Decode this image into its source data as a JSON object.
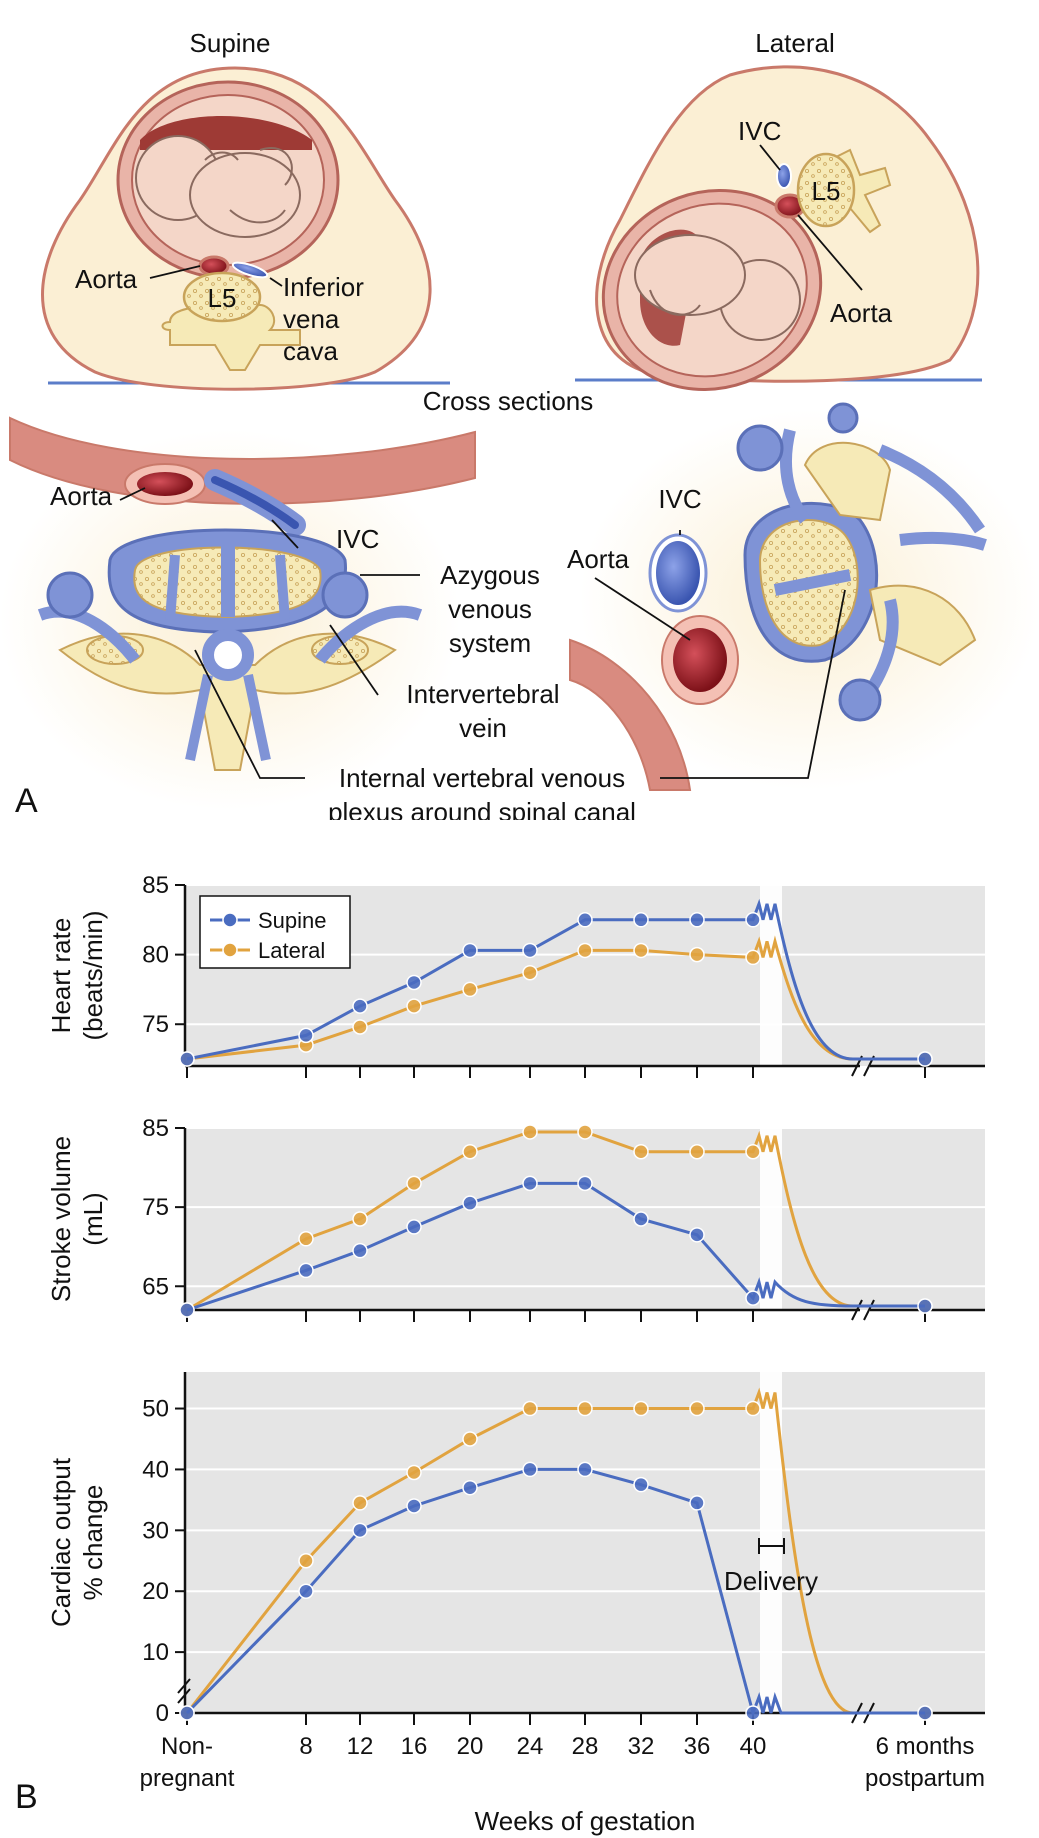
{
  "panel_a": {
    "panel_letter": "A",
    "supine_title": "Supine",
    "lateral_title": "Lateral",
    "cross_sections": "Cross sections",
    "labels": {
      "aorta": "Aorta",
      "inferior": "Inferior",
      "vena": "vena",
      "cava": "cava",
      "ivc": "IVC",
      "l5": "L5",
      "azygous_1": "Azygous",
      "azygous_2": "venous",
      "azygous_3": "system",
      "intervertebral_1": "Intervertebral",
      "intervertebral_2": "vein",
      "plexus_1": "Internal vertebral venous",
      "plexus_2": "plexus around spinal canal"
    },
    "colors": {
      "skin": "#fbefd4",
      "skin_outline": "#c9796a",
      "uterus": "#d88a7e",
      "aorta": "#9e1c22",
      "vein": "#7f93d6",
      "bone": "#f6eab7"
    }
  },
  "panel_b": {
    "panel_letter": "B",
    "legend": [
      "Supine",
      "Lateral"
    ],
    "colors": {
      "Supine": "#4a6cc0",
      "Lateral": "#e1a33f",
      "plot_bg": "#e5e5e5"
    },
    "x_title": "Weeks of gestation",
    "x_ticks": [
      "Non-\npregnant",
      "8",
      "12",
      "16",
      "20",
      "24",
      "28",
      "32",
      "36",
      "40",
      "6 months\npostpartum"
    ],
    "delivery_label": "Delivery"
  },
  "chart_data": [
    {
      "type": "line",
      "ylabel": "Heart rate\n(beats/min)",
      "yticks": [
        75,
        80,
        85
      ],
      "ylim": [
        72,
        85
      ],
      "x": [
        "Non-pregnant",
        8,
        12,
        16,
        20,
        24,
        28,
        32,
        36,
        40,
        "6 months postpartum"
      ],
      "series": [
        {
          "name": "Supine",
          "values": [
            72.5,
            74.2,
            76.3,
            78.0,
            80.3,
            80.3,
            82.5,
            82.5,
            82.5,
            82.5,
            72.5
          ]
        },
        {
          "name": "Lateral",
          "values": [
            72.5,
            73.5,
            74.8,
            76.3,
            77.5,
            78.7,
            80.3,
            80.3,
            80.0,
            79.8,
            72.5
          ]
        }
      ],
      "grid": true
    },
    {
      "type": "line",
      "ylabel": "Stroke volume\n(mL)",
      "yticks": [
        65,
        75,
        85
      ],
      "ylim": [
        62,
        85
      ],
      "x": [
        "Non-pregnant",
        8,
        12,
        16,
        20,
        24,
        28,
        32,
        36,
        40,
        "6 months postpartum"
      ],
      "series": [
        {
          "name": "Supine",
          "values": [
            62,
            67,
            69.5,
            72.5,
            75.5,
            78,
            78,
            73.5,
            71.5,
            63.5,
            62.5
          ]
        },
        {
          "name": "Lateral",
          "values": [
            62,
            71,
            73.5,
            78,
            82,
            84.5,
            84.5,
            82,
            82,
            82,
            62.5
          ]
        }
      ],
      "grid": true
    },
    {
      "type": "line",
      "ylabel": "Cardiac output\n% change",
      "yticks": [
        0,
        10,
        20,
        30,
        40,
        50
      ],
      "ylim": [
        0,
        56
      ],
      "x": [
        "Non-pregnant",
        8,
        12,
        16,
        20,
        24,
        28,
        32,
        36,
        40,
        "6 months postpartum"
      ],
      "series": [
        {
          "name": "Supine",
          "values": [
            0,
            20,
            30,
            34,
            37,
            40,
            40,
            37.5,
            34.5,
            0,
            0
          ]
        },
        {
          "name": "Lateral",
          "values": [
            0,
            25,
            34.5,
            39.5,
            45,
            50,
            50,
            50,
            50,
            50,
            0
          ]
        }
      ],
      "grid": true
    }
  ]
}
